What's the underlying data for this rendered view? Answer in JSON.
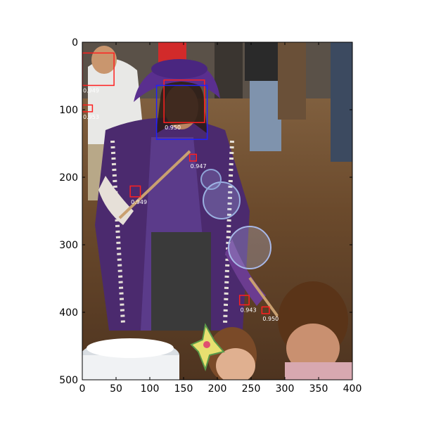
{
  "figure": {
    "image_subject": "photo",
    "x_ticks": [
      0,
      50,
      100,
      150,
      200,
      250,
      300,
      350,
      400
    ],
    "y_ticks": [
      0,
      100,
      200,
      300,
      400,
      500
    ],
    "x_range": [
      0,
      400
    ],
    "y_range": [
      0,
      500
    ]
  },
  "detections": [
    {
      "label": "0.949",
      "x": 0,
      "y": 16,
      "w": 47,
      "h": 48,
      "color": "#ff2020"
    },
    {
      "label": "0.953",
      "x": 0,
      "y": 93,
      "w": 15,
      "h": 10,
      "color": "#ff2020"
    },
    {
      "label": "0.950",
      "x": 121,
      "y": 56,
      "w": 60,
      "h": 63,
      "color": "#ff2020"
    },
    {
      "label": "",
      "x": 110,
      "y": 64,
      "w": 75,
      "h": 80,
      "color": "#2020ff"
    },
    {
      "label": "0.947",
      "x": 159,
      "y": 166,
      "w": 10,
      "h": 10,
      "color": "#ff2020"
    },
    {
      "label": "0.949",
      "x": 71,
      "y": 213,
      "w": 15,
      "h": 16,
      "color": "#ff2020"
    },
    {
      "label": "0.943",
      "x": 233,
      "y": 375,
      "w": 14,
      "h": 14,
      "color": "#ff2020"
    },
    {
      "label": "0.950",
      "x": 266,
      "y": 392,
      "w": 11,
      "h": 10,
      "color": "#ff2020"
    }
  ],
  "colors": {
    "ground": "#6b4a2c",
    "cloak": "#4b2a6e",
    "hat": "#5a2f8f",
    "skin": "#b98460",
    "frame": "#000000"
  }
}
